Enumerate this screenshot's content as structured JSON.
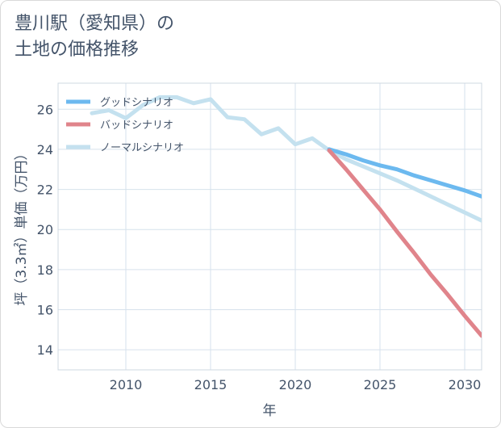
{
  "chart_data": {
    "type": "line",
    "title": "豊川駅（愛知県）の\n土地の価格推移",
    "xlabel": "年",
    "ylabel": "坪（3.3㎡）単価（万円）",
    "xlim": [
      2006,
      2031
    ],
    "ylim": [
      13,
      27.3
    ],
    "x_ticks": [
      2010,
      2015,
      2020,
      2025,
      2030
    ],
    "y_ticks": [
      14,
      16,
      18,
      20,
      22,
      24,
      26
    ],
    "grid": true,
    "legend_position": "top-left",
    "series": [
      {
        "name": "グッドシナリオ",
        "color": "#6cb9ef",
        "points": [
          [
            2022,
            24.0
          ],
          [
            2023,
            23.75
          ],
          [
            2024,
            23.45
          ],
          [
            2025,
            23.2
          ],
          [
            2026,
            23.0
          ],
          [
            2027,
            22.7
          ],
          [
            2028,
            22.45
          ],
          [
            2029,
            22.2
          ],
          [
            2030,
            21.95
          ],
          [
            2031,
            21.65
          ]
        ]
      },
      {
        "name": "バッドシナリオ",
        "color": "#e0848b",
        "points": [
          [
            2022,
            23.95
          ],
          [
            2023,
            23.0
          ],
          [
            2024,
            22.0
          ],
          [
            2025,
            21.0
          ],
          [
            2026,
            19.9
          ],
          [
            2027,
            18.85
          ],
          [
            2028,
            17.75
          ],
          [
            2029,
            16.75
          ],
          [
            2030,
            15.7
          ],
          [
            2031,
            14.7
          ]
        ]
      },
      {
        "name": "ノーマルシナリオ",
        "color": "#c4e1ef",
        "points": [
          [
            2008,
            25.8
          ],
          [
            2009,
            25.95
          ],
          [
            2010,
            25.55
          ],
          [
            2011,
            26.2
          ],
          [
            2012,
            26.6
          ],
          [
            2013,
            26.6
          ],
          [
            2014,
            26.3
          ],
          [
            2015,
            26.5
          ],
          [
            2016,
            25.6
          ],
          [
            2017,
            25.5
          ],
          [
            2018,
            24.75
          ],
          [
            2019,
            25.05
          ],
          [
            2020,
            24.25
          ],
          [
            2021,
            24.55
          ],
          [
            2022,
            23.95
          ],
          [
            2023,
            23.5
          ],
          [
            2024,
            23.15
          ],
          [
            2025,
            22.8
          ],
          [
            2026,
            22.45
          ],
          [
            2027,
            22.05
          ],
          [
            2028,
            21.65
          ],
          [
            2029,
            21.25
          ],
          [
            2030,
            20.85
          ],
          [
            2031,
            20.45
          ]
        ]
      }
    ]
  }
}
